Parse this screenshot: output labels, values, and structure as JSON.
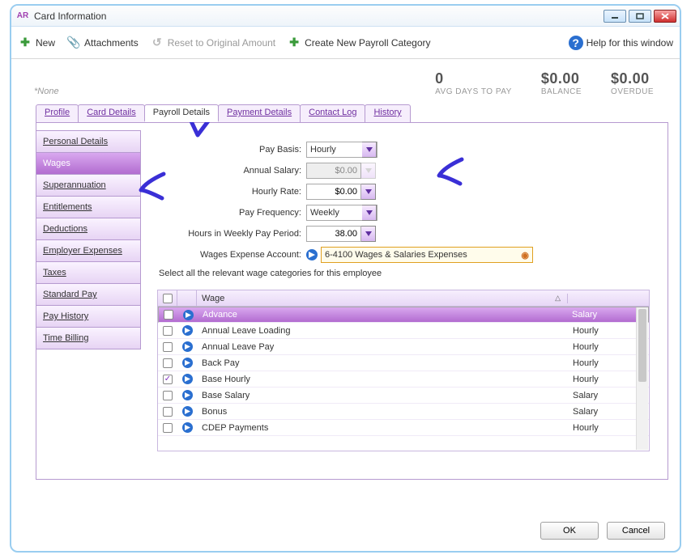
{
  "window": {
    "title": "Card Information",
    "logo": "AR"
  },
  "toolbar": {
    "new": "New",
    "attachments": "Attachments",
    "reset": "Reset to Original Amount",
    "createCategory": "Create New Payroll Category",
    "help": "Help for this window"
  },
  "summary": {
    "none": "*None",
    "m1_val": "0",
    "m1_lbl": "AVG DAYS TO PAY",
    "m2_val": "$0.00",
    "m2_lbl": "BALANCE",
    "m3_val": "$0.00",
    "m3_lbl": "OVERDUE"
  },
  "tabs": {
    "items": [
      "Profile",
      "Card Details",
      "Payroll Details",
      "Payment Details",
      "Contact Log",
      "History"
    ],
    "activeIndex": 2
  },
  "sideTabs": {
    "items": [
      "Personal Details",
      "Wages",
      "Superannuation",
      "Entitlements",
      "Deductions",
      "Employer Expenses",
      "Taxes",
      "Standard Pay",
      "Pay History",
      "Time Billing"
    ],
    "activeIndex": 1
  },
  "form": {
    "payBasis": {
      "label": "Pay Basis:",
      "value": "Hourly"
    },
    "annualSalary": {
      "label": "Annual Salary:",
      "value": "$0.00"
    },
    "hourlyRate": {
      "label": "Hourly Rate:",
      "value": "$0.00"
    },
    "payFrequency": {
      "label": "Pay Frequency:",
      "value": "Weekly"
    },
    "hoursInWeek": {
      "label": "Hours in Weekly Pay Period:",
      "value": "38.00"
    },
    "wagesAccount": {
      "label": "Wages Expense Account:",
      "value": "6-4100 Wages & Salaries Expenses"
    }
  },
  "wageTable": {
    "caption": "Select all the relevant wage categories for this employee",
    "header_wage": "Wage",
    "rows": [
      {
        "checked": false,
        "name": "Advance",
        "type": "Salary",
        "selected": true
      },
      {
        "checked": false,
        "name": "Annual Leave Loading",
        "type": "Hourly"
      },
      {
        "checked": false,
        "name": "Annual Leave Pay",
        "type": "Hourly"
      },
      {
        "checked": false,
        "name": "Back Pay",
        "type": "Hourly"
      },
      {
        "checked": true,
        "name": "Base Hourly",
        "type": "Hourly"
      },
      {
        "checked": false,
        "name": "Base Salary",
        "type": "Salary"
      },
      {
        "checked": false,
        "name": "Bonus",
        "type": "Salary"
      },
      {
        "checked": false,
        "name": "CDEP Payments",
        "type": "Hourly"
      }
    ]
  },
  "footer": {
    "ok": "OK",
    "cancel": "Cancel"
  },
  "colors": {
    "annotation": "#3a2fd6"
  }
}
